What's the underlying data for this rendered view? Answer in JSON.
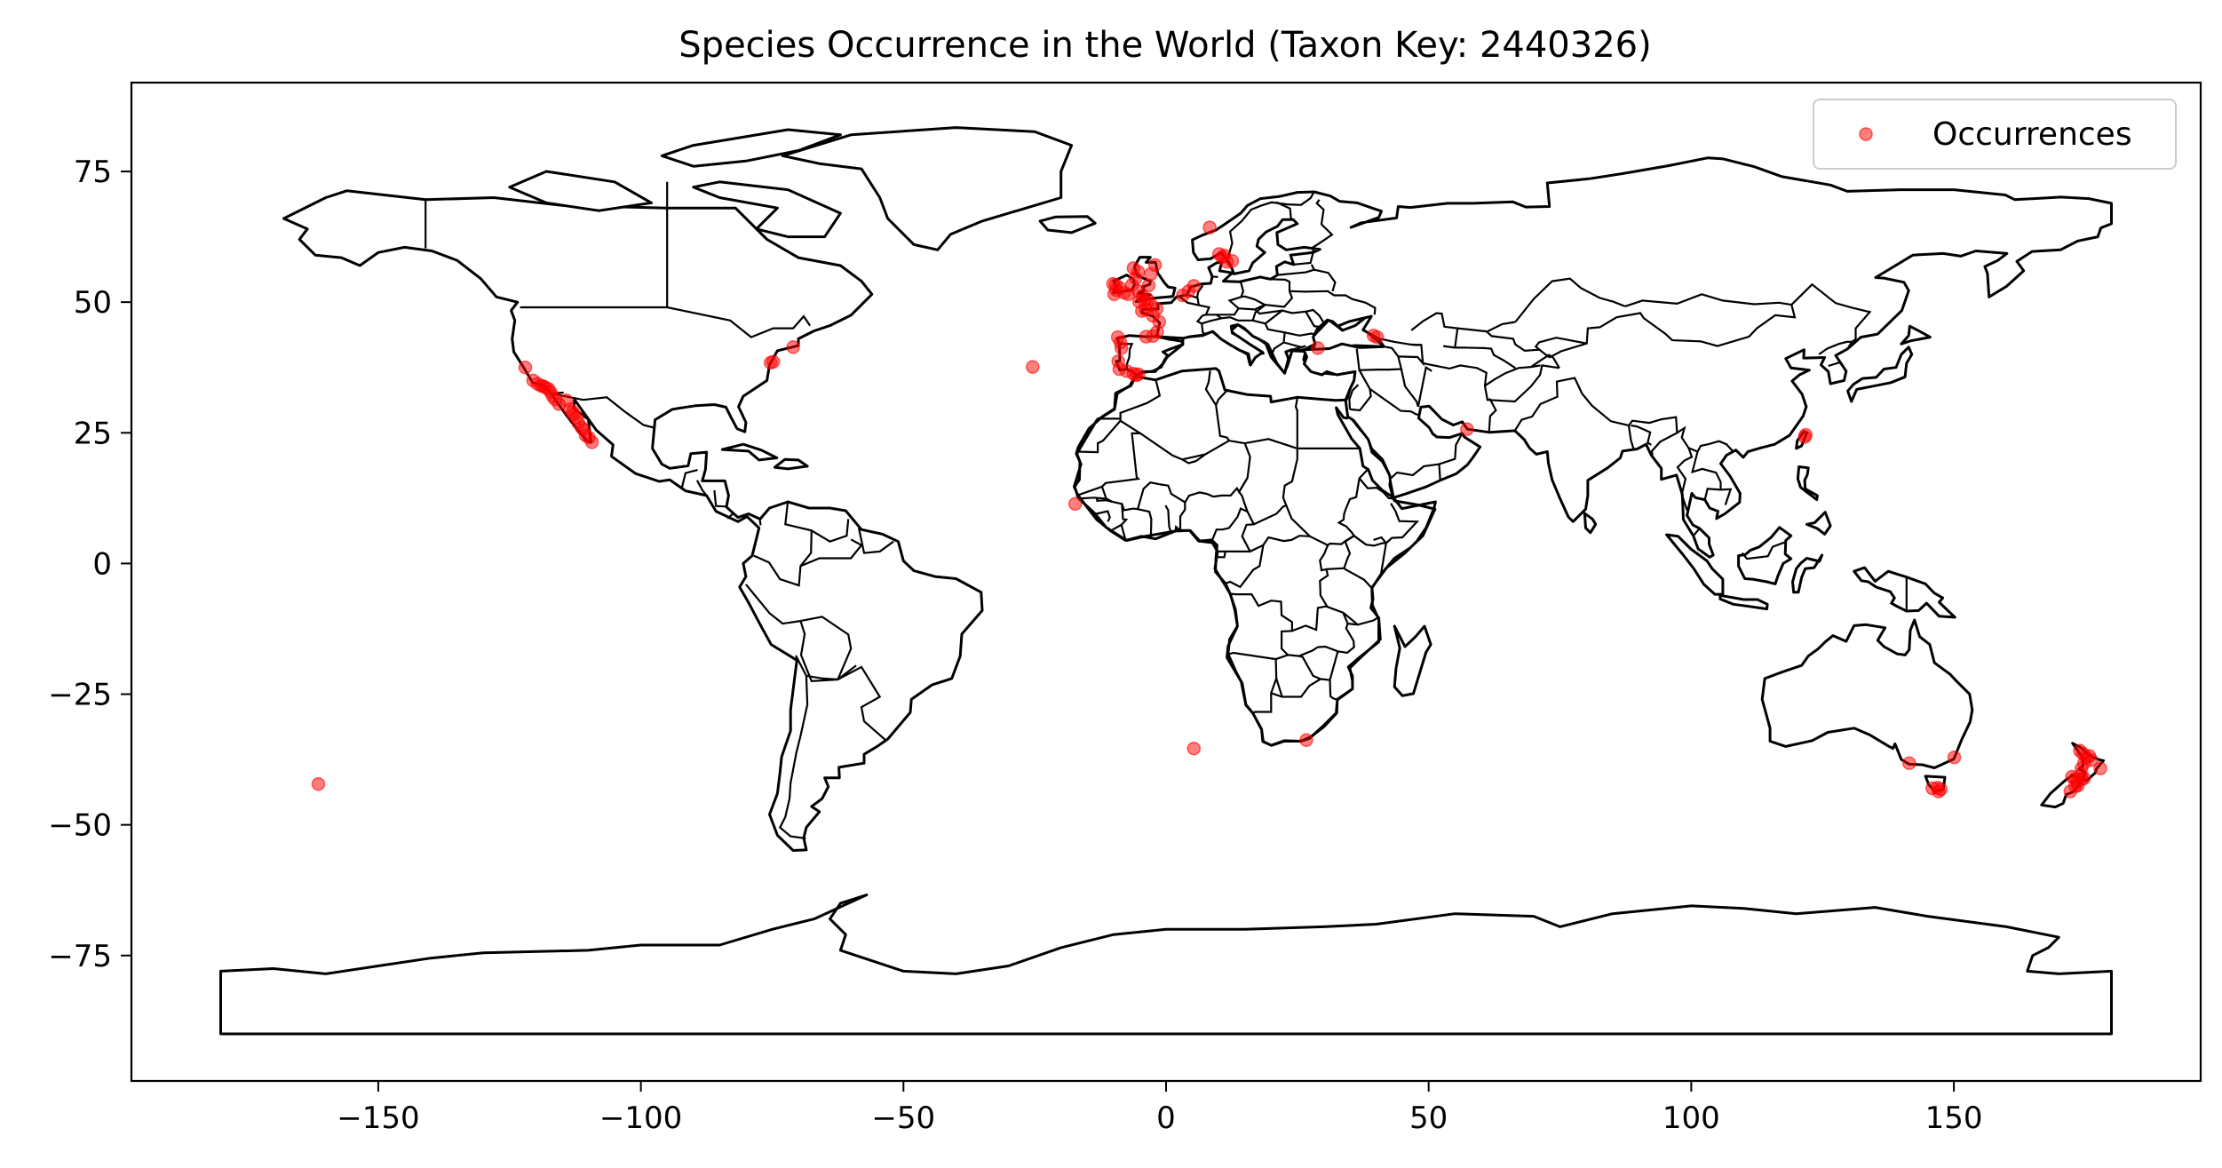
{
  "chart_data": {
    "type": "scatter",
    "title": "Species Occurrence in the World (Taxon Key: 2440326)",
    "xlabel": "",
    "ylabel": "",
    "xlim": [
      -197,
      197
    ],
    "ylim": [
      -99,
      92
    ],
    "xticks": [
      -150,
      -100,
      -50,
      0,
      50,
      100,
      150
    ],
    "yticks": [
      75,
      50,
      25,
      0,
      -25,
      -50,
      -75
    ],
    "xtick_labels": [
      "−150",
      "−100",
      "−50",
      "0",
      "50",
      "100",
      "150"
    ],
    "ytick_labels": [
      "75",
      "50",
      "25",
      "0",
      "−25",
      "−50",
      "−75"
    ],
    "grid": false,
    "legend_position": "top-right",
    "marker_color": "#ff0000",
    "basemap": "world country outlines",
    "series": [
      {
        "name": "Occurrences",
        "points": [
          [
            -122,
            37.5
          ],
          [
            -120.5,
            35
          ],
          [
            -119.7,
            34.4
          ],
          [
            -119,
            34
          ],
          [
            -118.6,
            33.9
          ],
          [
            -118.2,
            33.7
          ],
          [
            -117.6,
            33.4
          ],
          [
            -117.2,
            32.8
          ],
          [
            -116.8,
            32
          ],
          [
            -116.3,
            31.4
          ],
          [
            -115.6,
            30.5
          ],
          [
            -114.2,
            31.2
          ],
          [
            -113.5,
            29.5
          ],
          [
            -113,
            29
          ],
          [
            -112.8,
            28.5
          ],
          [
            -112.2,
            27.9
          ],
          [
            -111.9,
            26.9
          ],
          [
            -111.3,
            26
          ],
          [
            -110.9,
            25.6
          ],
          [
            -110.5,
            24.5
          ],
          [
            -109.9,
            24.1
          ],
          [
            -109.3,
            23.2
          ],
          [
            -75.3,
            38.4
          ],
          [
            -74.8,
            38.6
          ],
          [
            -71,
            41.4
          ],
          [
            -25.4,
            37.6
          ],
          [
            -17.3,
            11.4
          ],
          [
            -9.1,
            38.7
          ],
          [
            -8.9,
            37.2
          ],
          [
            -8.5,
            41.2
          ],
          [
            -8.7,
            42.3
          ],
          [
            -9.2,
            43.3
          ],
          [
            -7.5,
            36.8
          ],
          [
            -6.2,
            36.3
          ],
          [
            -5.7,
            36.0
          ],
          [
            -5.3,
            36.2
          ],
          [
            -3.8,
            43.4
          ],
          [
            -2.5,
            43.5
          ],
          [
            -9.5,
            52.3
          ],
          [
            -9.6,
            53.3
          ],
          [
            -8.8,
            52.7
          ],
          [
            -8,
            51.8
          ],
          [
            -7.2,
            51.5
          ],
          [
            -6.5,
            53.3
          ],
          [
            -5.8,
            54.6
          ],
          [
            -5.3,
            55.8
          ],
          [
            -6.2,
            56.5
          ],
          [
            -4.5,
            51.2
          ],
          [
            -4.1,
            50.3
          ],
          [
            -3.5,
            50.5
          ],
          [
            -2.8,
            49.5
          ],
          [
            -1.8,
            48.7
          ],
          [
            -2.5,
            47.4
          ],
          [
            -1.3,
            46.2
          ],
          [
            -1.7,
            44.3
          ],
          [
            -3.9,
            48.6
          ],
          [
            -4.6,
            48.3
          ],
          [
            -5.1,
            50.1
          ],
          [
            -3.3,
            53.2
          ],
          [
            -5.3,
            52.1
          ],
          [
            -9.9,
            51.5
          ],
          [
            -10.1,
            53.5
          ],
          [
            -2.1,
            57.1
          ],
          [
            -2.9,
            55.4
          ],
          [
            3.2,
            51.3
          ],
          [
            4.3,
            52.1
          ],
          [
            5.3,
            53.1
          ],
          [
            8.3,
            64.3
          ],
          [
            10.1,
            59.2
          ],
          [
            10.7,
            58.6
          ],
          [
            11.6,
            57.7
          ],
          [
            12.6,
            57.9
          ],
          [
            11.1,
            58.9
          ],
          [
            28.9,
            41.2
          ],
          [
            39.5,
            43.6
          ],
          [
            40.2,
            43.3
          ],
          [
            57.3,
            25.7
          ],
          [
            121.6,
            24.2
          ],
          [
            121.8,
            24.6
          ],
          [
            5.3,
            -35.4
          ],
          [
            26.7,
            -33.8
          ],
          [
            -161.4,
            -42.2
          ],
          [
            141.5,
            -38.2
          ],
          [
            150.1,
            -37.1
          ],
          [
            145.9,
            -43
          ],
          [
            146.9,
            -42.9
          ],
          [
            147.5,
            -43.2
          ],
          [
            147.1,
            -43.6
          ],
          [
            172.5,
            -40.8
          ],
          [
            173.1,
            -41.2
          ],
          [
            173.5,
            -41.8
          ],
          [
            174.3,
            -41.3
          ],
          [
            174.8,
            -41.1
          ],
          [
            174.3,
            -39.2
          ],
          [
            174.2,
            -40.5
          ],
          [
            175.2,
            -37.1
          ],
          [
            175.8,
            -36.8
          ],
          [
            176.2,
            -37.6
          ],
          [
            177.9,
            -39.2
          ],
          [
            174.6,
            -36.4
          ],
          [
            174,
            -35.8
          ],
          [
            173.6,
            -42.5
          ],
          [
            172.2,
            -43.6
          ],
          [
            173.1,
            -42.6
          ],
          [
            174.8,
            -38.2
          ]
        ]
      }
    ]
  }
}
